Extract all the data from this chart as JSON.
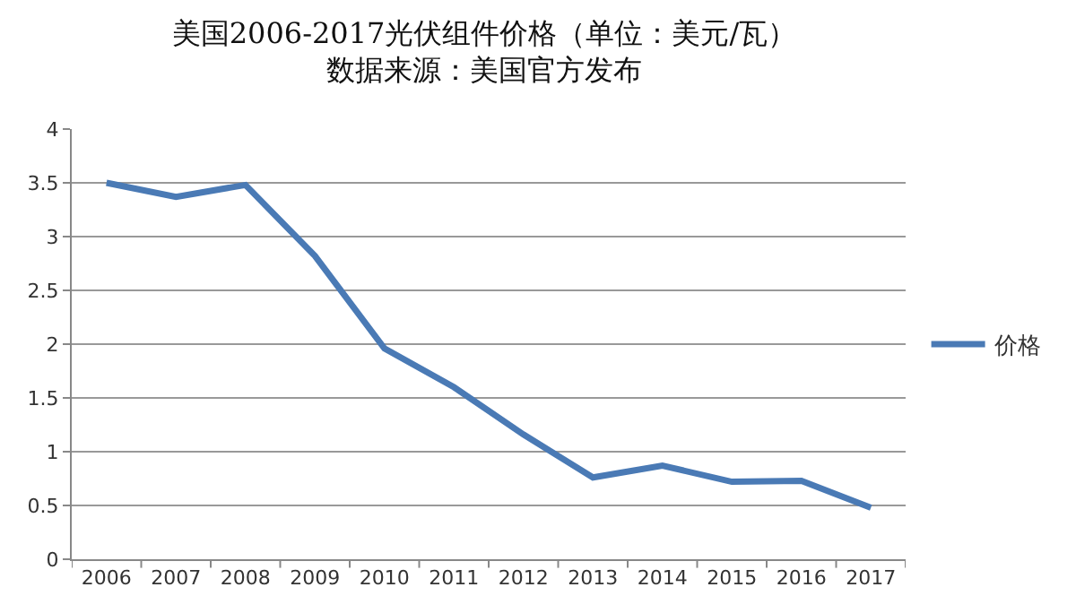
{
  "chart_data": {
    "type": "line",
    "title": "美国2006-2017光伏组件价格（单位：美元/瓦）",
    "subtitle": "数据来源：美国官方发布",
    "categories": [
      "2006",
      "2007",
      "2008",
      "2009",
      "2010",
      "2011",
      "2012",
      "2013",
      "2014",
      "2015",
      "2016",
      "2017"
    ],
    "series": [
      {
        "name": "价格",
        "color": "#4a7ab5",
        "values": [
          3.5,
          3.37,
          3.48,
          2.82,
          1.96,
          1.6,
          1.16,
          0.76,
          0.87,
          0.72,
          0.73,
          0.48
        ]
      }
    ],
    "ylim": [
      0,
      4
    ],
    "yticks": [
      0,
      0.5,
      1,
      1.5,
      2,
      2.5,
      3,
      3.5,
      4
    ],
    "grid": "y",
    "legend": "right",
    "marker": "none",
    "line_style": "solid"
  }
}
